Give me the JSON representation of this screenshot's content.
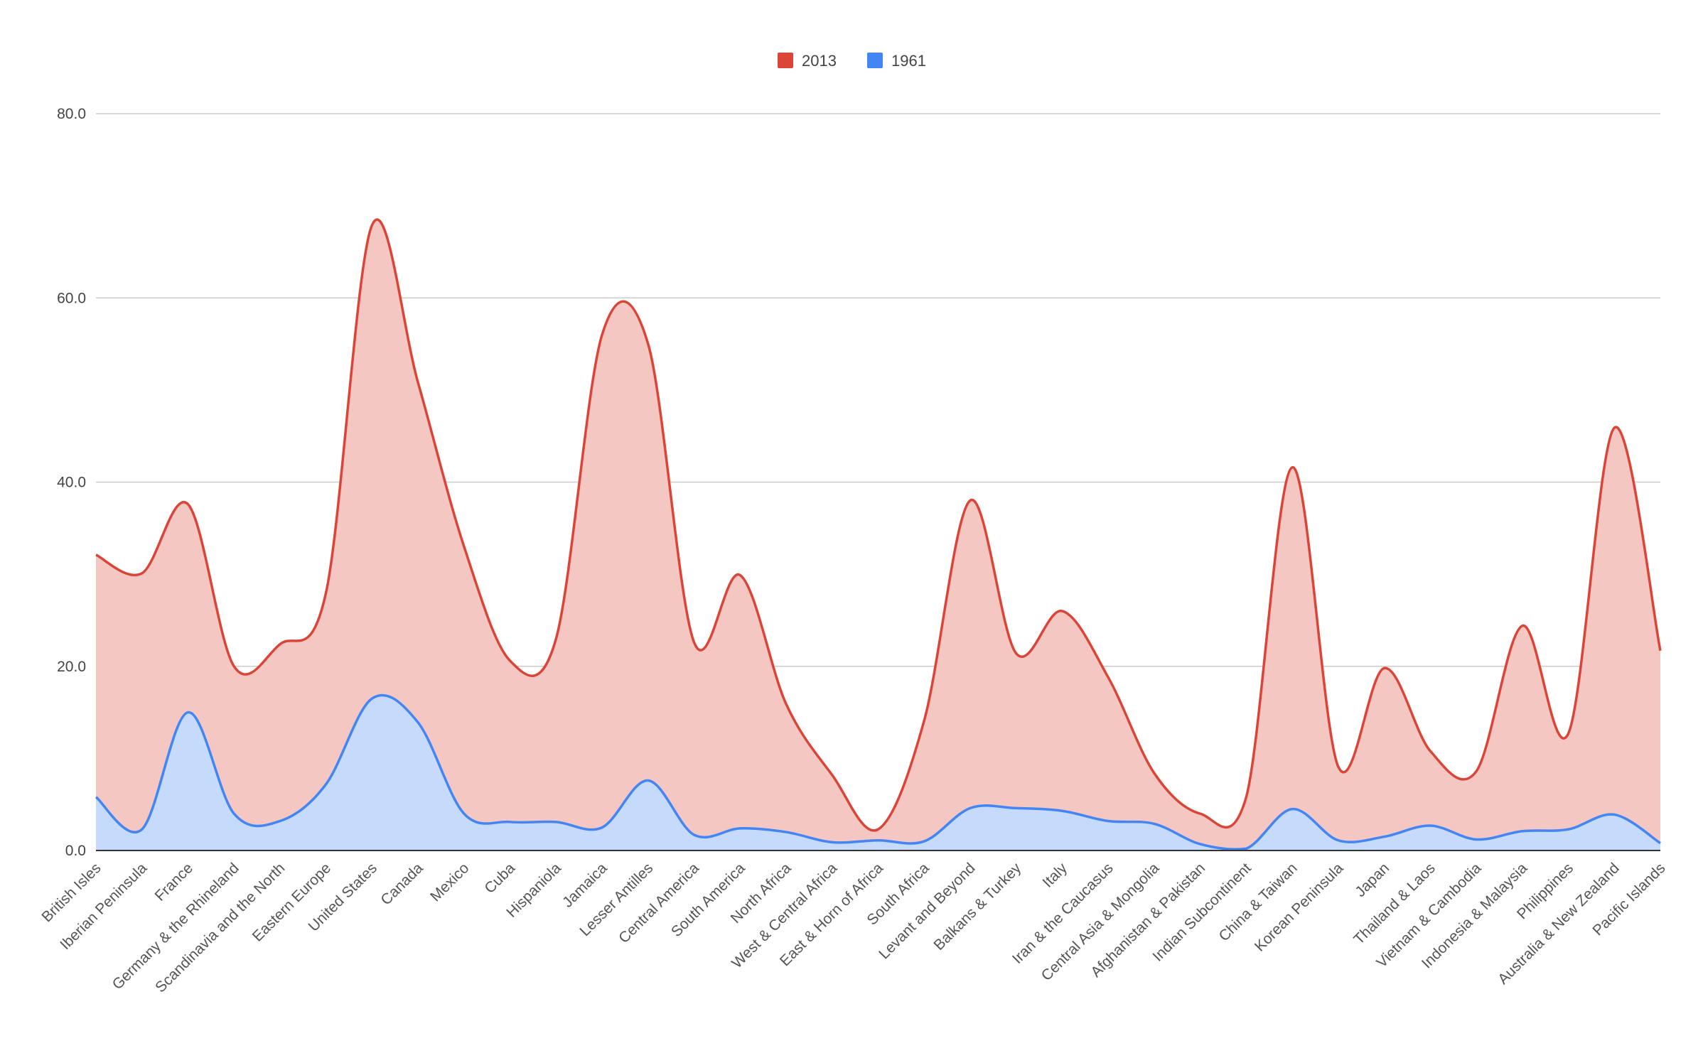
{
  "chart_data": {
    "type": "area",
    "title": "",
    "xlabel": "",
    "ylabel": "",
    "ylim": [
      0,
      80
    ],
    "yticks": [
      "0.0",
      "20.0",
      "40.0",
      "60.0",
      "80.0"
    ],
    "ytick_values": [
      0,
      20,
      40,
      60,
      80
    ],
    "grid": true,
    "legend_position": "top",
    "categories": [
      "British Isles",
      "Iberian Peninsula",
      "France",
      "Germany & the Rhineland",
      "Scandinavia and the North",
      "Eastern Europe",
      "United States",
      "Canada",
      "Mexico",
      "Cuba",
      "Hispaniola",
      "Jamaica",
      "Lesser Antilles",
      "Central America",
      "South America",
      "North Africa",
      "West & Central Africa",
      "East & Horn of Africa",
      "South Africa",
      "Levant and Beyond",
      "Balkans & Turkey",
      "Italy",
      "Iran & the Caucasus",
      "Central Asia & Mongolia",
      "Afghanistan & Pakistan",
      "Indian Subcontinent",
      "China & Taiwan",
      "Korean Peninsula",
      "Japan",
      "Thailand & Laos",
      "Vietnam & Cambodia",
      "Indonesia & Malaysia",
      "Philippines",
      "Australia & New Zealand",
      "Pacific Islands"
    ],
    "series": [
      {
        "name": "2013",
        "color": "#db4437",
        "fill": "#f4c7c3",
        "values": [
          32.1,
          30.1,
          37.6,
          20.0,
          22.4,
          28.0,
          67.9,
          50.8,
          33.0,
          20.6,
          23.0,
          56.0,
          55.0,
          22.6,
          29.9,
          15.9,
          8.2,
          2.3,
          14.1,
          38.0,
          21.4,
          26.0,
          18.8,
          8.4,
          4.0,
          5.8,
          41.6,
          9.1,
          19.8,
          10.8,
          8.6,
          24.4,
          12.7,
          45.9,
          21.7
        ]
      },
      {
        "name": "1961",
        "color": "#4285f4",
        "fill": "#c6dafc",
        "values": [
          5.8,
          2.3,
          15.0,
          4.0,
          3.2,
          7.2,
          16.5,
          13.9,
          4.0,
          3.1,
          3.1,
          2.5,
          7.6,
          1.7,
          2.4,
          2.0,
          0.9,
          1.1,
          1.0,
          4.6,
          4.6,
          4.3,
          3.2,
          2.9,
          0.7,
          0.2,
          4.5,
          1.1,
          1.5,
          2.7,
          1.2,
          2.1,
          2.3,
          3.9,
          0.8
        ]
      }
    ]
  }
}
